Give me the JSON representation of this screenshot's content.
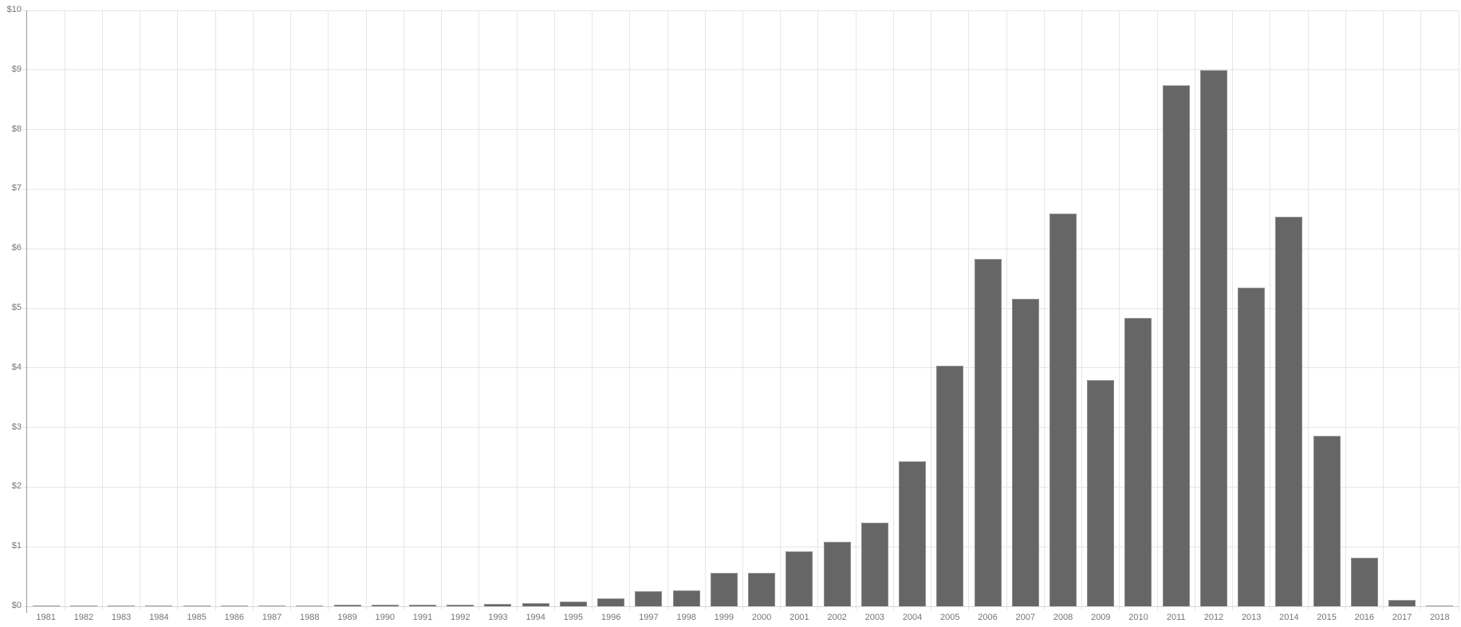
{
  "chart_data": {
    "type": "bar",
    "title": "",
    "xlabel": "",
    "ylabel": "",
    "legend": "none",
    "grid": true,
    "ylim": [
      0,
      10
    ],
    "y_ticks": [
      "$0",
      "$1",
      "$2",
      "$3",
      "$4",
      "$5",
      "$6",
      "$7",
      "$8",
      "$9",
      "$10"
    ],
    "categories": [
      "1981",
      "1982",
      "1983",
      "1984",
      "1985",
      "1986",
      "1987",
      "1988",
      "1989",
      "1990",
      "1991",
      "1992",
      "1993",
      "1994",
      "1995",
      "1996",
      "1997",
      "1998",
      "1999",
      "2000",
      "2001",
      "2002",
      "2003",
      "2004",
      "2005",
      "2006",
      "2007",
      "2008",
      "2009",
      "2010",
      "2011",
      "2012",
      "2013",
      "2014",
      "2015",
      "2016",
      "2017",
      "2018"
    ],
    "values": [
      0.01,
      0.01,
      0.01,
      0.01,
      0.01,
      0.01,
      0.01,
      0.01,
      0.03,
      0.03,
      0.03,
      0.03,
      0.04,
      0.05,
      0.08,
      0.13,
      0.26,
      0.27,
      0.56,
      0.56,
      0.92,
      1.08,
      1.41,
      2.43,
      4.04,
      5.83,
      5.16,
      6.59,
      3.8,
      4.84,
      8.74,
      9.0,
      5.35,
      6.54,
      2.86,
      0.82,
      0.11,
      0.01
    ],
    "colors": {
      "bar_fill": "#666666",
      "bar_edge_top": "#a0a0a0",
      "bar_edge_side": "#8c8c8c",
      "gridline": "#e6e6e6",
      "baseline": "#d6d6d6",
      "axis_line": "#999999",
      "label": "#757575",
      "background": "#ffffff"
    }
  }
}
